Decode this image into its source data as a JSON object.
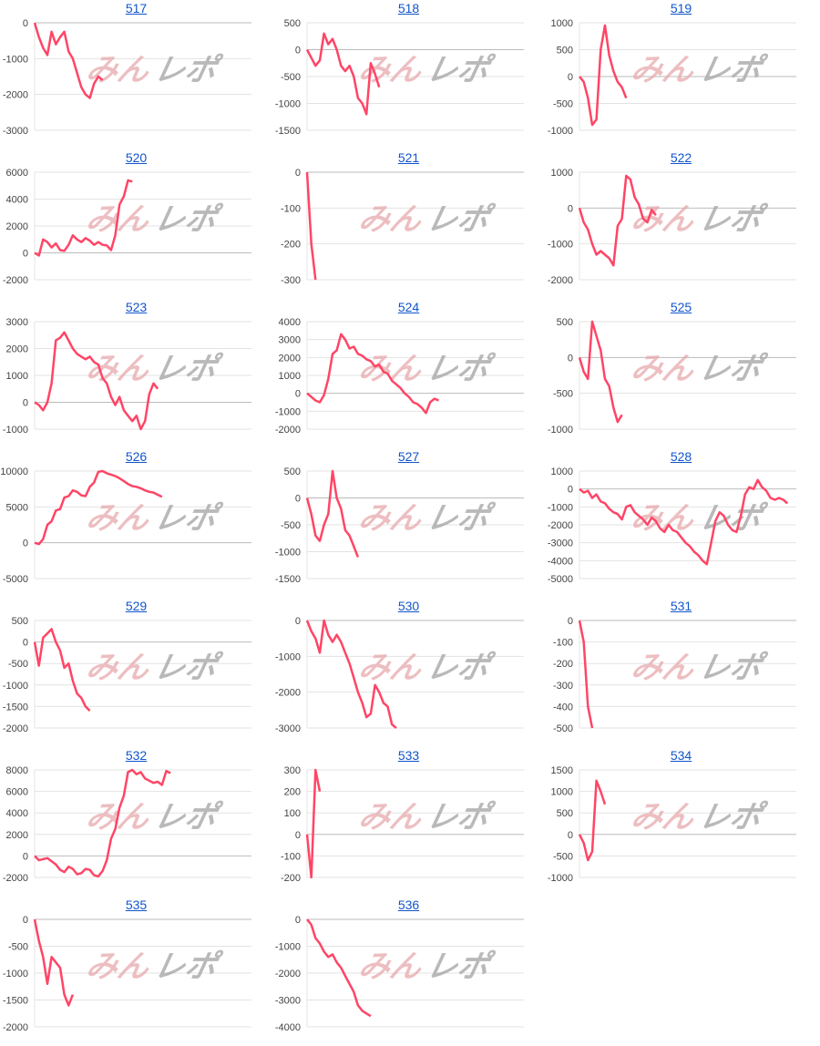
{
  "watermark": {
    "part1": "みん",
    "part2": "レポ"
  },
  "colors": {
    "line": "#ff4566",
    "title_link": "#1155cc",
    "grid": "#e3e3e3",
    "zero_line": "#bbbbbb"
  },
  "chart_data": [
    {
      "type": "line",
      "title": "517",
      "ylim": [
        -3000,
        0
      ],
      "yticks": [
        0,
        -1000,
        -2000,
        -3000
      ],
      "values": [
        0,
        -400,
        -700,
        -900,
        -250,
        -600,
        -400,
        -250,
        -800,
        -1000,
        -1400,
        -1800,
        -2000,
        -2100,
        -1700,
        -1500,
        -1600
      ]
    },
    {
      "type": "line",
      "title": "518",
      "ylim": [
        -1500,
        500
      ],
      "yticks": [
        500,
        0,
        -500,
        -1000,
        -1500
      ],
      "values": [
        0,
        -150,
        -300,
        -200,
        300,
        100,
        200,
        0,
        -300,
        -400,
        -300,
        -500,
        -900,
        -1000,
        -1200,
        -250,
        -450,
        -700
      ]
    },
    {
      "type": "line",
      "title": "519",
      "ylim": [
        -1000,
        1000
      ],
      "yticks": [
        1000,
        500,
        0,
        -500,
        -1000
      ],
      "values": [
        0,
        -100,
        -400,
        -900,
        -800,
        500,
        950,
        400,
        100,
        -100,
        -200,
        -400
      ]
    },
    {
      "type": "line",
      "title": "520",
      "ylim": [
        -2000,
        6000
      ],
      "yticks": [
        6000,
        4000,
        2000,
        0,
        -2000
      ],
      "values": [
        0,
        -200,
        1000,
        800,
        400,
        700,
        200,
        150,
        600,
        1300,
        1000,
        800,
        1100,
        900,
        600,
        800,
        600,
        550,
        200,
        1300,
        3600,
        4200,
        5400,
        5300
      ]
    },
    {
      "type": "line",
      "title": "521",
      "ylim": [
        -300,
        0
      ],
      "yticks": [
        0,
        -100,
        -200,
        -300
      ],
      "values": [
        0,
        -200,
        -300
      ]
    },
    {
      "type": "line",
      "title": "522",
      "ylim": [
        -2000,
        1000
      ],
      "yticks": [
        1000,
        0,
        -1000,
        -2000
      ],
      "values": [
        0,
        -400,
        -600,
        -1000,
        -1300,
        -1200,
        -1300,
        -1400,
        -1600,
        -500,
        -300,
        900,
        800,
        300,
        100,
        -300,
        -400,
        -50,
        -200
      ]
    },
    {
      "type": "line",
      "title": "523",
      "ylim": [
        -1000,
        3000
      ],
      "yticks": [
        3000,
        2000,
        1000,
        0,
        -1000
      ],
      "values": [
        0,
        -100,
        -300,
        0,
        700,
        2300,
        2400,
        2600,
        2300,
        2000,
        1800,
        1700,
        1600,
        1700,
        1500,
        1400,
        900,
        700,
        200,
        -100,
        200,
        -300,
        -500,
        -700,
        -500,
        -1000,
        -700,
        300,
        700,
        500
      ]
    },
    {
      "type": "line",
      "title": "524",
      "ylim": [
        -2000,
        4000
      ],
      "yticks": [
        4000,
        3000,
        2000,
        1000,
        0,
        -1000,
        -2000
      ],
      "values": [
        0,
        -200,
        -400,
        -500,
        -100,
        800,
        2200,
        2400,
        3300,
        3000,
        2500,
        2600,
        2200,
        2100,
        1900,
        1800,
        1500,
        1600,
        1200,
        1100,
        700,
        500,
        300,
        0,
        -200,
        -500,
        -600,
        -800,
        -1100,
        -500,
        -300,
        -400
      ]
    },
    {
      "type": "line",
      "title": "525",
      "ylim": [
        -1000,
        500
      ],
      "yticks": [
        500,
        0,
        -500,
        -1000
      ],
      "values": [
        0,
        -200,
        -300,
        500,
        300,
        100,
        -300,
        -400,
        -700,
        -900,
        -800
      ]
    },
    {
      "type": "line",
      "title": "526",
      "ylim": [
        -5000,
        10000
      ],
      "yticks": [
        10000,
        5000,
        0,
        -5000
      ],
      "values": [
        0,
        -200,
        500,
        2500,
        3000,
        4500,
        4700,
        6300,
        6500,
        7300,
        7100,
        6600,
        6500,
        7800,
        8400,
        9900,
        10000,
        9700,
        9500,
        9300,
        9000,
        8600,
        8200,
        7900,
        7800,
        7600,
        7300,
        7100,
        7000,
        6700,
        6400
      ]
    },
    {
      "type": "line",
      "title": "527",
      "ylim": [
        -1500,
        500
      ],
      "yticks": [
        500,
        0,
        -500,
        -1000,
        -1500
      ],
      "values": [
        0,
        -300,
        -700,
        -800,
        -500,
        -300,
        500,
        0,
        -200,
        -600,
        -700,
        -900,
        -1100
      ]
    },
    {
      "type": "line",
      "title": "528",
      "ylim": [
        -5000,
        1000
      ],
      "yticks": [
        1000,
        0,
        -1000,
        -2000,
        -3000,
        -4000,
        -5000
      ],
      "values": [
        0,
        -200,
        -100,
        -500,
        -300,
        -700,
        -800,
        -1100,
        -1300,
        -1400,
        -1700,
        -1000,
        -900,
        -1300,
        -1500,
        -1700,
        -2000,
        -1600,
        -1800,
        -2200,
        -2400,
        -2000,
        -2300,
        -2400,
        -2700,
        -3000,
        -3200,
        -3500,
        -3700,
        -4000,
        -4200,
        -3000,
        -1800,
        -1300,
        -1500,
        -2000,
        -2300,
        -2400,
        -1500,
        -300,
        100,
        0,
        500,
        100,
        -100,
        -500,
        -600,
        -500,
        -600,
        -800
      ]
    },
    {
      "type": "line",
      "title": "529",
      "ylim": [
        -2000,
        500
      ],
      "yticks": [
        500,
        0,
        -500,
        -1000,
        -1500,
        -2000
      ],
      "values": [
        0,
        -550,
        100,
        200,
        300,
        0,
        -200,
        -600,
        -500,
        -900,
        -1200,
        -1300,
        -1500,
        -1600
      ]
    },
    {
      "type": "line",
      "title": "530",
      "ylim": [
        -3000,
        0
      ],
      "yticks": [
        0,
        -1000,
        -2000,
        -3000
      ],
      "values": [
        0,
        -300,
        -500,
        -900,
        0,
        -400,
        -600,
        -400,
        -600,
        -900,
        -1200,
        -1600,
        -2000,
        -2300,
        -2700,
        -2600,
        -1800,
        -2000,
        -2300,
        -2400,
        -2900,
        -3000
      ]
    },
    {
      "type": "line",
      "title": "531",
      "ylim": [
        -500,
        0
      ],
      "yticks": [
        0,
        -100,
        -200,
        -300,
        -400,
        -500
      ],
      "values": [
        0,
        -100,
        -400,
        -500
      ]
    },
    {
      "type": "line",
      "title": "532",
      "ylim": [
        -2000,
        8000
      ],
      "yticks": [
        8000,
        6000,
        4000,
        2000,
        0,
        -2000
      ],
      "values": [
        0,
        -400,
        -300,
        -200,
        -500,
        -800,
        -1300,
        -1500,
        -1000,
        -1200,
        -1700,
        -1600,
        -1200,
        -1300,
        -1800,
        -1900,
        -1400,
        -400,
        1600,
        2500,
        4500,
        5600,
        7800,
        8000,
        7600,
        7800,
        7200,
        7000,
        6800,
        6900,
        6600,
        7900,
        7700
      ]
    },
    {
      "type": "line",
      "title": "533",
      "ylim": [
        -200,
        300
      ],
      "yticks": [
        300,
        200,
        100,
        0,
        -100,
        -200
      ],
      "values": [
        0,
        -200,
        300,
        200
      ]
    },
    {
      "type": "line",
      "title": "534",
      "ylim": [
        -1000,
        1500
      ],
      "yticks": [
        1500,
        1000,
        500,
        0,
        -500,
        -1000
      ],
      "values": [
        0,
        -200,
        -600,
        -400,
        1250,
        1000,
        700
      ]
    },
    {
      "type": "line",
      "title": "535",
      "ylim": [
        -2000,
        0
      ],
      "yticks": [
        0,
        -500,
        -1000,
        -1500,
        -2000
      ],
      "values": [
        0,
        -400,
        -700,
        -1200,
        -700,
        -800,
        -900,
        -1400,
        -1600,
        -1400
      ]
    },
    {
      "type": "line",
      "title": "536",
      "ylim": [
        -4000,
        0
      ],
      "yticks": [
        0,
        -1000,
        -2000,
        -3000,
        -4000
      ],
      "values": [
        0,
        -200,
        -700,
        -900,
        -1200,
        -1400,
        -1300,
        -1600,
        -1800,
        -2100,
        -2400,
        -2700,
        -3200,
        -3400,
        -3500,
        -3600
      ]
    }
  ]
}
